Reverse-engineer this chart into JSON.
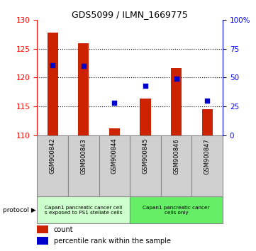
{
  "title": "GDS5099 / ILMN_1669775",
  "samples": [
    "GSM900842",
    "GSM900843",
    "GSM900844",
    "GSM900845",
    "GSM900846",
    "GSM900847"
  ],
  "counts": [
    127.8,
    126.0,
    111.2,
    116.3,
    121.7,
    114.5
  ],
  "percentile_ranks": [
    61,
    60,
    28,
    43,
    49,
    30
  ],
  "ylim_left": [
    110,
    130
  ],
  "ylim_right": [
    0,
    100
  ],
  "yticks_left": [
    110,
    115,
    120,
    125,
    130
  ],
  "yticks_right": [
    0,
    25,
    50,
    75,
    100
  ],
  "ytick_labels_right": [
    "0",
    "25",
    "50",
    "75",
    "100%"
  ],
  "bar_color": "#cc2200",
  "scatter_color": "#0000cc",
  "group1_label": "Capan1 pancreatic cancer cell\ns exposed to PS1 stellate cells",
  "group2_label": "Capan1 pancreatic cancer\ncells only",
  "group1_color": "#ccffcc",
  "group2_color": "#66ee66",
  "sample_box_color": "#d0d0d0",
  "sample_box_edge": "#888888",
  "protocol_label": "protocol",
  "legend_count_label": "count",
  "legend_pct_label": "percentile rank within the sample",
  "grid_yticks": [
    115,
    120,
    125
  ]
}
